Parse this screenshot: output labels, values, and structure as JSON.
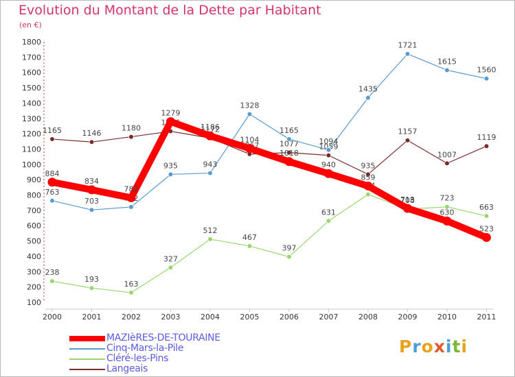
{
  "title": "Evolution du Montant de la Dette par Habitant",
  "unit": "(en €)",
  "brand": {
    "letters": [
      "P",
      "r",
      "o",
      "x",
      "i",
      "t",
      "i"
    ],
    "colors": [
      "#e8a21f",
      "#4a9ed8",
      "#e8a21f",
      "#e05a2a",
      "#4a9ed8",
      "#78b832",
      "#e8a21f"
    ]
  },
  "chart_data": {
    "type": "line",
    "x": [
      "2000",
      "2001",
      "2002",
      "2003",
      "2004",
      "2005",
      "2006",
      "2007",
      "2008",
      "2009",
      "2010",
      "2011"
    ],
    "ylim": [
      100,
      1800
    ],
    "yticks": [
      100,
      200,
      300,
      400,
      500,
      600,
      700,
      800,
      900,
      1000,
      1100,
      1200,
      1300,
      1400,
      1500,
      1600,
      1700,
      1800
    ],
    "grid": false,
    "legend_position": "bottom-left",
    "series": [
      {
        "name": "MAZIèRES-DE-TOURAINE",
        "color": "#ff0000",
        "values": [
          884,
          834,
          782,
          1279,
          1186,
          1104,
          1018,
          940,
          859,
          713,
          630,
          523
        ]
      },
      {
        "name": "Cinq-Mars-la-Pile",
        "color": "#5a9ad0",
        "values": [
          763,
          703,
          722,
          935,
          943,
          1328,
          1165,
          1094,
          1435,
          1721,
          1615,
          1560
        ]
      },
      {
        "name": "Cléré-les-Pins",
        "color": "#9ad66e",
        "values": [
          238,
          193,
          163,
          327,
          512,
          467,
          397,
          631,
          804,
          708,
          723,
          663
        ]
      },
      {
        "name": "Langeais",
        "color": "#7a2a2a",
        "values": [
          1165,
          1146,
          1180,
          1216,
          1172,
          1067,
          1077,
          1059,
          935,
          1157,
          1007,
          1119
        ]
      }
    ]
  }
}
